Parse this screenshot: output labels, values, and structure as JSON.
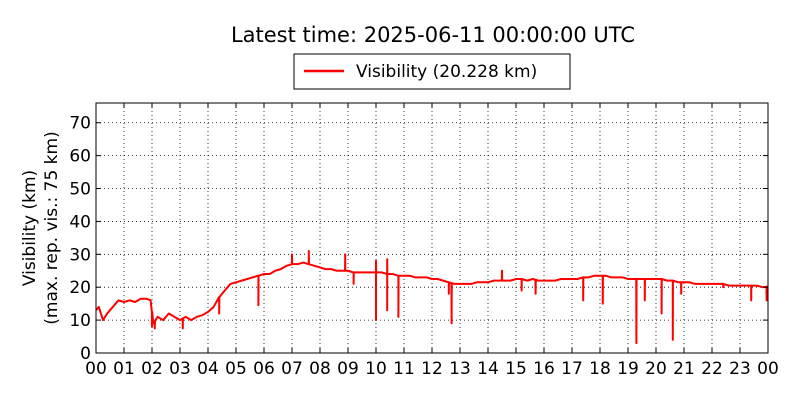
{
  "chart_data": {
    "type": "line",
    "title": "Latest time: 2025-06-11 00:00:00 UTC",
    "xlabel": "",
    "ylabel": "Visibility (km)",
    "ylabel2": "(max. rep. vis.: 75 km)",
    "x_tick_labels": [
      "00",
      "01",
      "02",
      "03",
      "04",
      "05",
      "06",
      "07",
      "08",
      "09",
      "10",
      "11",
      "12",
      "13",
      "14",
      "15",
      "16",
      "17",
      "18",
      "19",
      "20",
      "21",
      "22",
      "23",
      "00"
    ],
    "xlim_hours": [
      0,
      24
    ],
    "ylim": [
      0,
      76
    ],
    "y_ticks": [
      0,
      10,
      20,
      30,
      40,
      50,
      60,
      70
    ],
    "grid": true,
    "legend_position": "top-center",
    "series": [
      {
        "name": "Visibility (20.228 km)",
        "color": "#ff0000",
        "points": [
          [
            0.0,
            13
          ],
          [
            0.1,
            14
          ],
          [
            0.25,
            10
          ],
          [
            0.4,
            12
          ],
          [
            0.6,
            14
          ],
          [
            0.8,
            16
          ],
          [
            1.0,
            15.5
          ],
          [
            1.2,
            16
          ],
          [
            1.4,
            15.5
          ],
          [
            1.6,
            16.5
          ],
          [
            1.8,
            16.5
          ],
          [
            1.95,
            16
          ],
          [
            2.05,
            9
          ],
          [
            2.2,
            11
          ],
          [
            2.4,
            10
          ],
          [
            2.6,
            12
          ],
          [
            2.8,
            11
          ],
          [
            3.0,
            10
          ],
          [
            3.2,
            11
          ],
          [
            3.4,
            10
          ],
          [
            3.6,
            11
          ],
          [
            3.8,
            11.5
          ],
          [
            4.0,
            12.5
          ],
          [
            4.2,
            14
          ],
          [
            4.4,
            17
          ],
          [
            4.6,
            19
          ],
          [
            4.8,
            21
          ],
          [
            5.0,
            21.5
          ],
          [
            5.2,
            22
          ],
          [
            5.4,
            22.5
          ],
          [
            5.6,
            23
          ],
          [
            5.8,
            23.5
          ],
          [
            6.0,
            24
          ],
          [
            6.2,
            24
          ],
          [
            6.4,
            25
          ],
          [
            6.6,
            25.5
          ],
          [
            6.8,
            26.5
          ],
          [
            7.0,
            27
          ],
          [
            7.2,
            27
          ],
          [
            7.4,
            27.5
          ],
          [
            7.6,
            27
          ],
          [
            7.8,
            26.5
          ],
          [
            8.0,
            26
          ],
          [
            8.2,
            25.5
          ],
          [
            8.4,
            25.5
          ],
          [
            8.6,
            25
          ],
          [
            8.8,
            25
          ],
          [
            9.0,
            25
          ],
          [
            9.2,
            24.5
          ],
          [
            9.4,
            24.5
          ],
          [
            9.6,
            24.5
          ],
          [
            9.8,
            24.5
          ],
          [
            10.0,
            24.5
          ],
          [
            10.2,
            24.5
          ],
          [
            10.4,
            24
          ],
          [
            10.6,
            24
          ],
          [
            10.8,
            23.5
          ],
          [
            11.0,
            23.5
          ],
          [
            11.2,
            23.5
          ],
          [
            11.4,
            23
          ],
          [
            11.6,
            23
          ],
          [
            11.8,
            23
          ],
          [
            12.0,
            22.5
          ],
          [
            12.2,
            22.5
          ],
          [
            12.4,
            22
          ],
          [
            12.6,
            21.5
          ],
          [
            12.8,
            21
          ],
          [
            13.0,
            21
          ],
          [
            13.2,
            21
          ],
          [
            13.4,
            21
          ],
          [
            13.6,
            21.5
          ],
          [
            13.8,
            21.5
          ],
          [
            14.0,
            21.5
          ],
          [
            14.2,
            22
          ],
          [
            14.4,
            22
          ],
          [
            14.6,
            22
          ],
          [
            14.8,
            22
          ],
          [
            15.0,
            22.5
          ],
          [
            15.2,
            22.5
          ],
          [
            15.4,
            22
          ],
          [
            15.6,
            22.5
          ],
          [
            15.8,
            22
          ],
          [
            16.0,
            22
          ],
          [
            16.2,
            22
          ],
          [
            16.4,
            22
          ],
          [
            16.6,
            22.5
          ],
          [
            16.8,
            22.5
          ],
          [
            17.0,
            22.5
          ],
          [
            17.2,
            22.5
          ],
          [
            17.4,
            23
          ],
          [
            17.6,
            23
          ],
          [
            17.8,
            23.5
          ],
          [
            18.0,
            23.5
          ],
          [
            18.2,
            23.5
          ],
          [
            18.4,
            23
          ],
          [
            18.6,
            23
          ],
          [
            18.8,
            23
          ],
          [
            19.0,
            22.5
          ],
          [
            19.2,
            22.5
          ],
          [
            19.4,
            22.5
          ],
          [
            19.6,
            22.5
          ],
          [
            19.8,
            22.5
          ],
          [
            20.0,
            22.5
          ],
          [
            20.2,
            22.5
          ],
          [
            20.4,
            22
          ],
          [
            20.6,
            22
          ],
          [
            20.8,
            21.5
          ],
          [
            21.0,
            21.5
          ],
          [
            21.2,
            21.5
          ],
          [
            21.4,
            21
          ],
          [
            21.6,
            21
          ],
          [
            21.8,
            21
          ],
          [
            22.0,
            21
          ],
          [
            22.2,
            21
          ],
          [
            22.4,
            21
          ],
          [
            22.6,
            20.5
          ],
          [
            22.8,
            20.5
          ],
          [
            23.0,
            20.5
          ],
          [
            23.2,
            20.5
          ],
          [
            23.4,
            20.5
          ],
          [
            23.6,
            20.5
          ],
          [
            23.8,
            20
          ],
          [
            24.0,
            20.2
          ]
        ],
        "dips": [
          [
            2.0,
            8
          ],
          [
            2.1,
            7.5
          ],
          [
            3.1,
            7.5
          ],
          [
            4.4,
            12
          ],
          [
            5.8,
            14.5
          ],
          [
            9.2,
            21
          ],
          [
            10.0,
            10
          ],
          [
            10.4,
            13
          ],
          [
            10.8,
            11
          ],
          [
            12.6,
            18
          ],
          [
            12.7,
            9
          ],
          [
            15.2,
            19
          ],
          [
            15.7,
            18
          ],
          [
            17.4,
            16
          ],
          [
            18.1,
            15
          ],
          [
            19.3,
            3
          ],
          [
            19.6,
            16
          ],
          [
            20.2,
            12
          ],
          [
            20.6,
            4
          ],
          [
            20.9,
            18
          ],
          [
            22.4,
            20
          ],
          [
            23.4,
            16
          ],
          [
            23.95,
            16
          ]
        ],
        "spikes": [
          [
            7.0,
            30
          ],
          [
            7.6,
            31
          ],
          [
            8.9,
            30
          ],
          [
            10.4,
            28.5
          ],
          [
            10.0,
            28
          ],
          [
            14.5,
            25
          ]
        ]
      }
    ]
  }
}
